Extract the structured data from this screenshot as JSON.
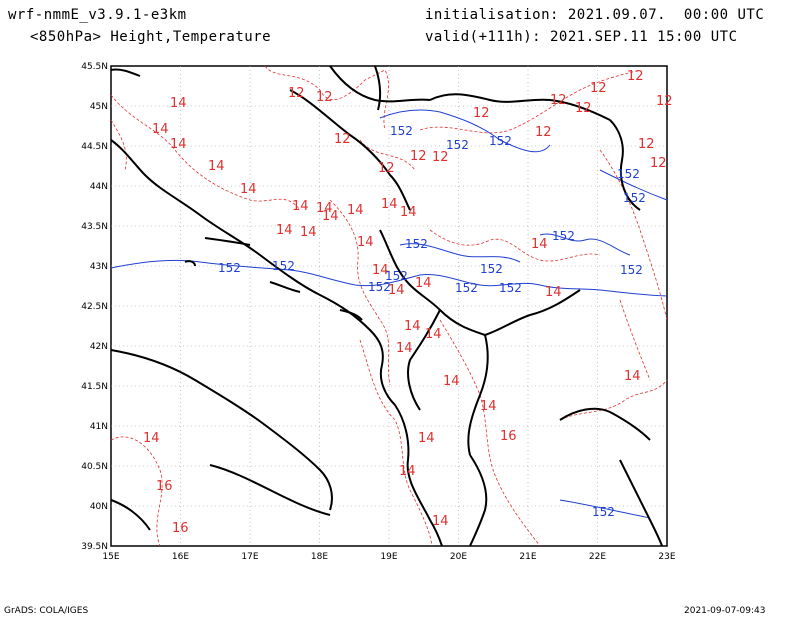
{
  "header": {
    "model": "wrf-nmmE_v3.9.1-e3km",
    "fields": "<850hPa> Height,Temperature",
    "init": "initialisation: 2021.09.07.  00:00 UTC",
    "valid": "valid(+111h): 2021.SEP.11 15:00 UTC"
  },
  "footer": {
    "credit": "GrADS: COLA/IGES",
    "timestamp": "2021-09-07-09:43"
  },
  "map": {
    "lon_labels": [
      "15E",
      "16E",
      "17E",
      "18E",
      "19E",
      "20E",
      "21E",
      "22E",
      "23E"
    ],
    "lat_labels": [
      "45.5N",
      "45N",
      "44.5N",
      "44N",
      "43.5N",
      "43N",
      "42.5N",
      "42N",
      "41.5N",
      "41N",
      "40.5N",
      "40N",
      "39.5N"
    ],
    "colors": {
      "temperature": "#e03030",
      "height": "#2040d0",
      "coast": "#000000",
      "grid": "#a0a0a0"
    },
    "temperature_labels": [
      "12",
      "12",
      "12",
      "12",
      "12",
      "12",
      "12",
      "12",
      "12",
      "12",
      "12",
      "12",
      "12",
      "12",
      "12",
      "14",
      "14",
      "14",
      "14",
      "14",
      "14",
      "14",
      "14",
      "14",
      "14",
      "14",
      "14",
      "14",
      "14",
      "14",
      "14",
      "14",
      "14",
      "14",
      "14",
      "14",
      "14",
      "14",
      "14",
      "14",
      "14",
      "14",
      "14",
      "14",
      "16",
      "16",
      "16"
    ],
    "height_labels": [
      "152",
      "152",
      "152",
      "152",
      "152",
      "152",
      "152",
      "152",
      "152",
      "152",
      "152",
      "152",
      "152",
      "152",
      "152",
      "152"
    ]
  }
}
